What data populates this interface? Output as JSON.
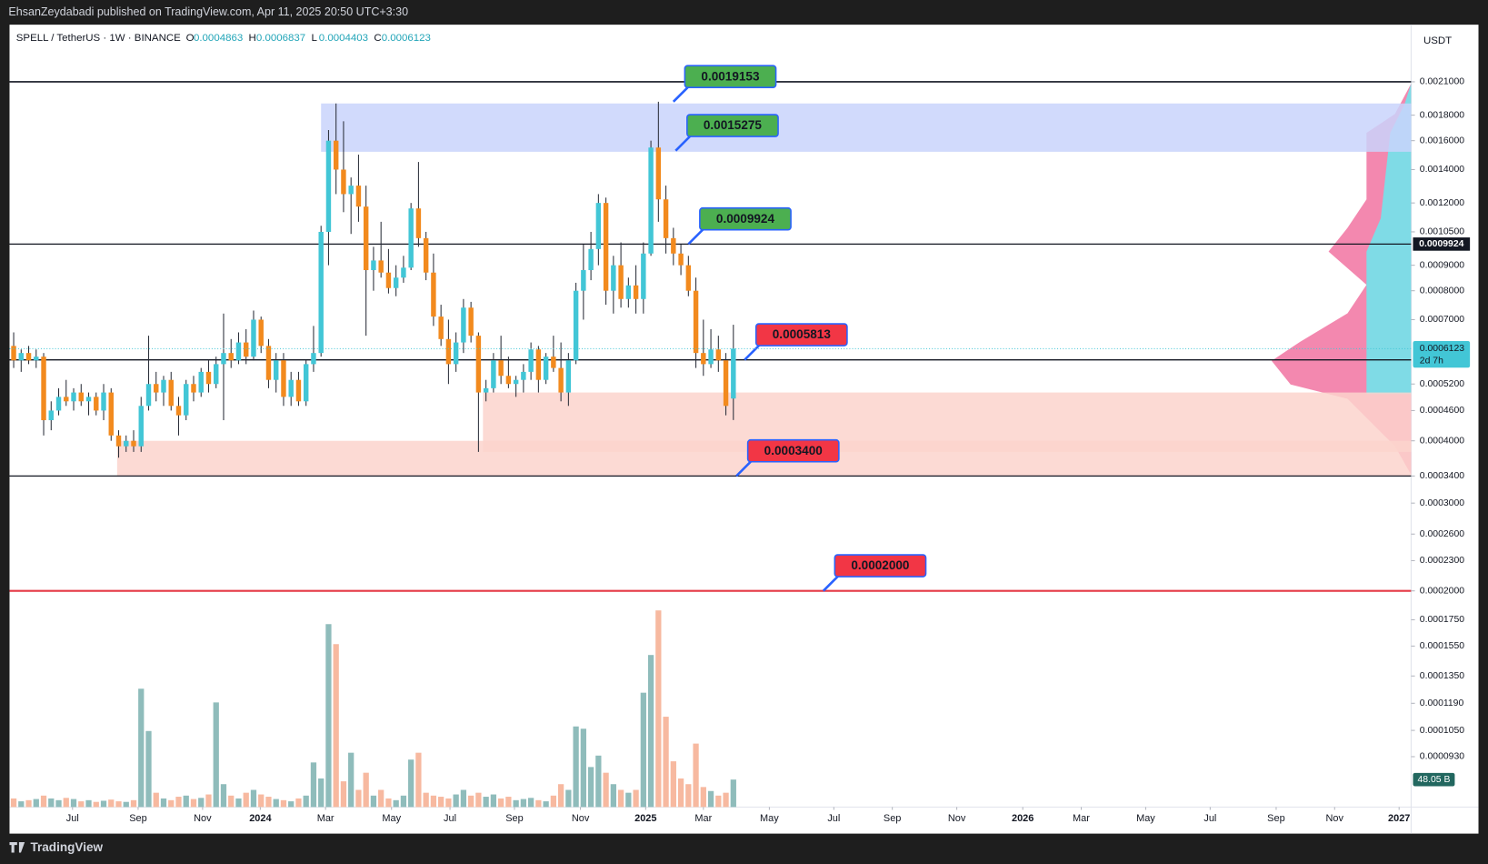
{
  "header": {
    "published": "EhsanZeydabadi published on TradingView.com, Apr 11, 2025 20:50 UTC+3:30",
    "brand": "TradingView"
  },
  "chart_data": {
    "type": "candlestick",
    "title": "SPELL / TetherUS · 1W · BINANCE",
    "ohlc_labels": [
      "O",
      "H",
      "L",
      "C"
    ],
    "currency": "USDT",
    "countdown": "2d 7h",
    "log_scale": true,
    "grid": false,
    "up_color": "#42c6d6",
    "down_color": "#f28a1e",
    "volume_up_color": "#8fbcbb",
    "volume_down_color": "#f7b9a0",
    "xlim": [
      -0.3,
      186.4
    ],
    "xticks": [
      {
        "value": 7.85,
        "label": "Jul"
      },
      {
        "value": 16.6,
        "label": "Sep"
      },
      {
        "value": 25.2,
        "label": "Nov"
      },
      {
        "value": 32.9,
        "label": "2024"
      },
      {
        "value": 41.6,
        "label": "Mar"
      },
      {
        "value": 50.4,
        "label": "May"
      },
      {
        "value": 58.2,
        "label": "Jul"
      },
      {
        "value": 66.8,
        "label": "Sep"
      },
      {
        "value": 75.6,
        "label": "Nov"
      },
      {
        "value": 84.3,
        "label": "2025"
      },
      {
        "value": 92,
        "label": "Mar"
      },
      {
        "value": 100.8,
        "label": "May"
      },
      {
        "value": 109.4,
        "label": "Jul"
      },
      {
        "value": 117.2,
        "label": "Sep"
      },
      {
        "value": 125.8,
        "label": "Nov"
      },
      {
        "value": 134.6,
        "label": "2026"
      },
      {
        "value": 142.4,
        "label": "Mar"
      },
      {
        "value": 151,
        "label": "May"
      },
      {
        "value": 159.6,
        "label": "Jul"
      },
      {
        "value": 168.4,
        "label": "Sep"
      },
      {
        "value": 176.2,
        "label": "Nov"
      },
      {
        "value": 184.8,
        "label": "2027"
      }
    ],
    "ylim": [
      7.37e-05,
      0.00271
    ],
    "yticks": [
      {
        "value": 0.0021,
        "label": "0.0021000"
      },
      {
        "value": 0.0018,
        "label": "0.0018000"
      },
      {
        "value": 0.0016,
        "label": "0.0016000"
      },
      {
        "value": 0.0014,
        "label": "0.0014000"
      },
      {
        "value": 0.0012,
        "label": "0.0012000"
      },
      {
        "value": 0.00105,
        "label": "0.0010500"
      },
      {
        "value": 0.0009,
        "label": "0.0009000"
      },
      {
        "value": 0.0008,
        "label": "0.0008000"
      },
      {
        "value": 0.0007,
        "label": "0.0007000"
      },
      {
        "value": 0.00052,
        "label": "0.0005200"
      },
      {
        "value": 0.00046,
        "label": "0.0004600"
      },
      {
        "value": 0.0004,
        "label": "0.0004000"
      },
      {
        "value": 0.00034,
        "label": "0.0003400"
      },
      {
        "value": 0.0003,
        "label": "0.0003000"
      },
      {
        "value": 0.00026,
        "label": "0.0002600"
      },
      {
        "value": 0.00023,
        "label": "0.0002300"
      },
      {
        "value": 0.0002,
        "label": "0.0002000"
      },
      {
        "value": 0.000175,
        "label": "0.0001750"
      },
      {
        "value": 0.000155,
        "label": "0.0001550"
      },
      {
        "value": 0.000135,
        "label": "0.0001350"
      },
      {
        "value": 0.000119,
        "label": "0.0001190"
      },
      {
        "value": 0.000105,
        "label": "0.0001050"
      },
      {
        "value": 9.3e-05,
        "label": "0.0000930"
      }
    ],
    "candles": [
      [
        0.00062,
        0.00066,
        0.00056,
        0.00058
      ],
      [
        0.00058,
        0.00061,
        0.00055,
        0.0006
      ],
      [
        0.0006,
        0.00062,
        0.00057,
        0.00058
      ],
      [
        0.00058,
        0.00061,
        0.00056,
        0.00059
      ],
      [
        0.00059,
        0.0006,
        0.00041,
        0.00044
      ],
      [
        0.00044,
        0.00048,
        0.00042,
        0.00046
      ],
      [
        0.00046,
        0.00051,
        0.00045,
        0.00049
      ],
      [
        0.00049,
        0.00053,
        0.00047,
        0.00048
      ],
      [
        0.00048,
        0.00051,
        0.00046,
        0.0005
      ],
      [
        0.0005,
        0.00052,
        0.00047,
        0.00048
      ],
      [
        0.00048,
        0.0005,
        0.00045,
        0.00049
      ],
      [
        0.00049,
        0.0005,
        0.00045,
        0.00046
      ],
      [
        0.00046,
        0.00052,
        0.00044,
        0.0005
      ],
      [
        0.0005,
        0.00051,
        0.0004,
        0.00041
      ],
      [
        0.00041,
        0.00042,
        0.00037,
        0.00039
      ],
      [
        0.00039,
        0.00041,
        0.00038,
        0.0004
      ],
      [
        0.0004,
        0.00042,
        0.00038,
        0.00039
      ],
      [
        0.00039,
        0.00049,
        0.00038,
        0.00047
      ],
      [
        0.00047,
        0.00065,
        0.00046,
        0.00052
      ],
      [
        0.00052,
        0.00055,
        0.00048,
        0.0005
      ],
      [
        0.0005,
        0.00054,
        0.00047,
        0.00053
      ],
      [
        0.00053,
        0.00055,
        0.00046,
        0.00047
      ],
      [
        0.00047,
        0.00049,
        0.00041,
        0.00045
      ],
      [
        0.00045,
        0.00053,
        0.00044,
        0.00052
      ],
      [
        0.00052,
        0.00054,
        0.00048,
        0.0005
      ],
      [
        0.0005,
        0.00056,
        0.00049,
        0.00055
      ],
      [
        0.00055,
        0.00058,
        0.0005,
        0.00052
      ],
      [
        0.00052,
        0.00059,
        0.00051,
        0.00057
      ],
      [
        0.00057,
        0.00072,
        0.00044,
        0.0006
      ],
      [
        0.0006,
        0.00064,
        0.00056,
        0.00058
      ],
      [
        0.00058,
        0.00066,
        0.00057,
        0.00063
      ],
      [
        0.00063,
        0.00067,
        0.00057,
        0.00059
      ],
      [
        0.00059,
        0.00073,
        0.00058,
        0.0007
      ],
      [
        0.0007,
        0.00071,
        0.0006,
        0.00062
      ],
      [
        0.00062,
        0.00064,
        0.00051,
        0.00053
      ],
      [
        0.00053,
        0.0006,
        0.0005,
        0.00058
      ],
      [
        0.00058,
        0.0006,
        0.00047,
        0.00049
      ],
      [
        0.00049,
        0.00055,
        0.00047,
        0.00053
      ],
      [
        0.00053,
        0.00055,
        0.00047,
        0.00048
      ],
      [
        0.00048,
        0.00058,
        0.00047,
        0.00057
      ],
      [
        0.00057,
        0.00068,
        0.00055,
        0.0006
      ],
      [
        0.0006,
        0.00108,
        0.00059,
        0.00105
      ],
      [
        0.00105,
        0.00168,
        0.0009,
        0.0016
      ],
      [
        0.0016,
        0.0019,
        0.00125,
        0.0014
      ],
      [
        0.0014,
        0.00175,
        0.00115,
        0.00125
      ],
      [
        0.00125,
        0.00135,
        0.00104,
        0.0013
      ],
      [
        0.0013,
        0.0015,
        0.0011,
        0.00118
      ],
      [
        0.00118,
        0.0013,
        0.00065,
        0.00088
      ],
      [
        0.00088,
        0.00098,
        0.0008,
        0.00092
      ],
      [
        0.00092,
        0.0011,
        0.00085,
        0.00087
      ],
      [
        0.00087,
        0.00097,
        0.00079,
        0.00081
      ],
      [
        0.00081,
        0.0009,
        0.00078,
        0.00085
      ],
      [
        0.00085,
        0.00094,
        0.00083,
        0.00089
      ],
      [
        0.00089,
        0.0012,
        0.00088,
        0.00117
      ],
      [
        0.00117,
        0.00145,
        0.00098,
        0.00102
      ],
      [
        0.00102,
        0.00105,
        0.00084,
        0.00087
      ],
      [
        0.00087,
        0.00095,
        0.00068,
        0.00071
      ],
      [
        0.00071,
        0.00075,
        0.00062,
        0.00064
      ],
      [
        0.00064,
        0.0007,
        0.00052,
        0.00057
      ],
      [
        0.00057,
        0.00066,
        0.00055,
        0.00063
      ],
      [
        0.00063,
        0.00077,
        0.0006,
        0.00074
      ],
      [
        0.00074,
        0.00076,
        0.00063,
        0.00065
      ],
      [
        0.00065,
        0.00066,
        0.00038,
        0.0005
      ],
      [
        0.0005,
        0.00053,
        0.00048,
        0.00051
      ],
      [
        0.00051,
        0.0006,
        0.0005,
        0.00058
      ],
      [
        0.00058,
        0.00065,
        0.00052,
        0.00054
      ],
      [
        0.00054,
        0.00059,
        0.00051,
        0.00052
      ],
      [
        0.00052,
        0.00054,
        0.00049,
        0.00053
      ],
      [
        0.00053,
        0.00057,
        0.0005,
        0.00055
      ],
      [
        0.00055,
        0.00063,
        0.00053,
        0.00061
      ],
      [
        0.00061,
        0.00062,
        0.0005,
        0.00053
      ],
      [
        0.00053,
        0.0006,
        0.00052,
        0.00059
      ],
      [
        0.00059,
        0.00065,
        0.00055,
        0.00056
      ],
      [
        0.00056,
        0.00063,
        0.00048,
        0.0005
      ],
      [
        0.0005,
        0.0006,
        0.00047,
        0.00058
      ],
      [
        0.00058,
        0.00083,
        0.00057,
        0.0008
      ],
      [
        0.0008,
        0.00099,
        0.0007,
        0.00088
      ],
      [
        0.00088,
        0.00105,
        0.00084,
        0.00097
      ],
      [
        0.00097,
        0.00125,
        0.0009,
        0.0012
      ],
      [
        0.0012,
        0.00123,
        0.00075,
        0.0008
      ],
      [
        0.0008,
        0.00094,
        0.00072,
        0.0009
      ],
      [
        0.0009,
        0.001,
        0.00074,
        0.00077
      ],
      [
        0.00077,
        0.00085,
        0.00074,
        0.00082
      ],
      [
        0.00082,
        0.0009,
        0.00072,
        0.00077
      ],
      [
        0.00077,
        0.001,
        0.00072,
        0.00095
      ],
      [
        0.00095,
        0.0016,
        0.00094,
        0.00155
      ],
      [
        0.00155,
        0.0019153,
        0.0011,
        0.00122
      ],
      [
        0.00122,
        0.0013,
        0.00095,
        0.00102
      ],
      [
        0.00102,
        0.00107,
        0.0009,
        0.00095
      ],
      [
        0.00095,
        0.00099,
        0.00086,
        0.0009
      ],
      [
        0.0009,
        0.00094,
        0.00078,
        0.0008
      ],
      [
        0.0008,
        0.00085,
        0.00056,
        0.0006
      ],
      [
        0.0006,
        0.0007,
        0.00054,
        0.00057
      ],
      [
        0.00057,
        0.00067,
        0.00056,
        0.00061
      ],
      [
        0.00061,
        0.00065,
        0.00055,
        0.00058
      ],
      [
        0.00058,
        0.0006,
        0.00045,
        0.00047
      ],
      [
        0.0004863,
        0.0006837,
        0.0004403,
        0.0006123
      ]
    ],
    "volume_ylim": [
      0,
      500
    ],
    "volumes": [
      15,
      10,
      12,
      14,
      20,
      15,
      12,
      16,
      14,
      10,
      12,
      9,
      11,
      13,
      10,
      9,
      12,
      207,
      133,
      25,
      15,
      12,
      18,
      20,
      14,
      16,
      22,
      183,
      40,
      20,
      15,
      25,
      30,
      22,
      18,
      14,
      12,
      10,
      15,
      20,
      78,
      50,
      320,
      285,
      45,
      95,
      30,
      60,
      20,
      30,
      15,
      12,
      20,
      83,
      95,
      25,
      20,
      18,
      15,
      22,
      30,
      20,
      25,
      18,
      22,
      15,
      18,
      12,
      14,
      16,
      12,
      10,
      20,
      40,
      30,
      141,
      137,
      70,
      90,
      60,
      40,
      30,
      25,
      30,
      200,
      266,
      344,
      158,
      80,
      50,
      40,
      111,
      35,
      28,
      20,
      25,
      48.05
    ],
    "volume_badge": "48.05 B",
    "hlines": [
      0.0021
    ],
    "zones": [
      {
        "x0": 41,
        "top": 0.0019,
        "bottom": 0.00152,
        "color": "#c9d3fb"
      },
      {
        "x0": 62.6,
        "top": 0.0005,
        "bottom": 0.00038,
        "color": "#fbd3cc"
      },
      {
        "x0": 13.8,
        "top": 0.0004,
        "bottom": 0.00034,
        "color": "#fbd3cc"
      }
    ],
    "annotations": [
      {
        "x": 88,
        "value": 0.0019153,
        "color": "#4caf50",
        "line": false
      },
      {
        "x": 88.3,
        "value": 0.0015275,
        "color": "#4caf50",
        "line": false
      },
      {
        "x": 90,
        "value": 0.0009924,
        "color": "#4caf50",
        "line": true
      },
      {
        "x": 97.5,
        "value": 0.0005813,
        "color": "#f23645",
        "line": true
      },
      {
        "x": 96.4,
        "value": 0.00034,
        "label": "0.0003400",
        "color": "#f23645",
        "line": true
      },
      {
        "x": 108,
        "value": 0.0002,
        "label": "0.0002000",
        "color": "#f23645",
        "line": true,
        "line_color": "#e53945"
      }
    ]
  }
}
